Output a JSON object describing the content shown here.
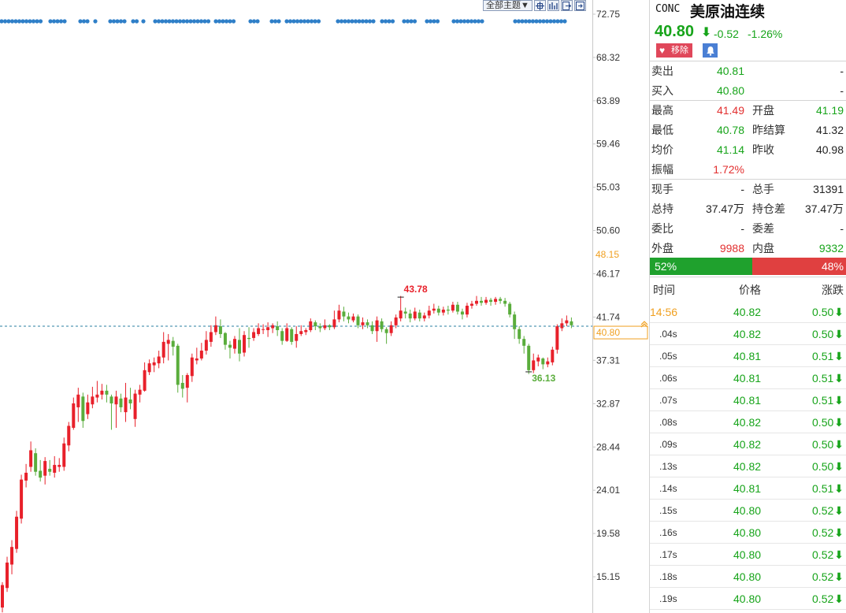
{
  "symbol": {
    "code": "CONC",
    "name": "美原油连续",
    "last": "40.80",
    "arrow": "⬇",
    "change": "-0.52",
    "change_pct": "-1.26%",
    "remove_label": "移除",
    "heart_icon": "♥",
    "colors": {
      "up": "#e23030",
      "down": "#17a41a",
      "accent": "#f0a020"
    }
  },
  "toolbar": {
    "theme_label": "全部主题▼",
    "icons": [
      "crosshair-icon",
      "bars-icon",
      "export-icon",
      "fullscreen-icon"
    ]
  },
  "quote_rows": [
    {
      "l1": "卖出",
      "v1": "40.81",
      "c1": "green",
      "l2": "",
      "v2": "-",
      "c2": "dark"
    },
    {
      "l1": "买入",
      "v1": "40.80",
      "c1": "green",
      "l2": "",
      "v2": "-",
      "c2": "dark"
    },
    {
      "l1": "最高",
      "v1": "41.49",
      "c1": "red",
      "l2": "开盘",
      "v2": "41.19",
      "c2": "green"
    },
    {
      "l1": "最低",
      "v1": "40.78",
      "c1": "green",
      "l2": "昨结算",
      "v2": "41.32",
      "c2": "dark"
    },
    {
      "l1": "均价",
      "v1": "41.14",
      "c1": "green",
      "l2": "昨收",
      "v2": "40.98",
      "c2": "dark"
    },
    {
      "l1": "振幅",
      "v1": "1.72%",
      "c1": "red",
      "l2": "",
      "v2": "",
      "c2": "dark"
    },
    {
      "l1": "现手",
      "v1": "-",
      "c1": "dark",
      "l2": "总手",
      "v2": "31391",
      "c2": "dark"
    },
    {
      "l1": "总持",
      "v1": "37.47万",
      "c1": "dark",
      "l2": "持仓差",
      "v2": "37.47万",
      "c2": "dark"
    },
    {
      "l1": "委比",
      "v1": "-",
      "c1": "dark",
      "l2": "委差",
      "v2": "-",
      "c2": "dark"
    },
    {
      "l1": "外盘",
      "v1": "9988",
      "c1": "red",
      "l2": "内盘",
      "v2": "9332",
      "c2": "green"
    }
  ],
  "ratio": {
    "buy_label": "52%",
    "sell_label": "48%",
    "buy_fraction": 0.52
  },
  "ticks_header": {
    "time": "时间",
    "price": "价格",
    "change": "涨跌"
  },
  "ticks": [
    {
      "time": "14:56",
      "price": "40.82",
      "change": "0.50"
    },
    {
      "time": ".04s",
      "price": "40.82",
      "change": "0.50"
    },
    {
      "time": ".05s",
      "price": "40.81",
      "change": "0.51"
    },
    {
      "time": ".06s",
      "price": "40.81",
      "change": "0.51"
    },
    {
      "time": ".07s",
      "price": "40.81",
      "change": "0.51"
    },
    {
      "time": ".08s",
      "price": "40.82",
      "change": "0.50"
    },
    {
      "time": ".09s",
      "price": "40.82",
      "change": "0.50"
    },
    {
      "time": ".13s",
      "price": "40.82",
      "change": "0.50"
    },
    {
      "time": ".14s",
      "price": "40.81",
      "change": "0.51"
    },
    {
      "time": ".15s",
      "price": "40.80",
      "change": "0.52"
    },
    {
      "time": ".16s",
      "price": "40.80",
      "change": "0.52"
    },
    {
      "time": ".17s",
      "price": "40.80",
      "change": "0.52"
    },
    {
      "time": ".18s",
      "price": "40.80",
      "change": "0.52"
    },
    {
      "time": ".19s",
      "price": "40.80",
      "change": "0.52"
    }
  ],
  "chart_data": {
    "type": "candlestick",
    "y_ticks": [
      72.75,
      68.32,
      63.89,
      59.46,
      55.03,
      50.6,
      46.17,
      41.74,
      37.31,
      32.87,
      28.44,
      24.01,
      19.58,
      15.15
    ],
    "ylim": [
      11.3,
      73.0
    ],
    "marker_label": "48.15",
    "current_label": "40.80",
    "current_value": 40.8,
    "high_annotation": {
      "label": "43.78",
      "value": 43.78
    },
    "low_annotation": {
      "label": "36.13",
      "value": 36.13
    },
    "colors": {
      "up": "#e8202a",
      "down": "#5aad3c",
      "dots": "#2f7fc8",
      "current_line": "#2a7fa0",
      "label_orange": "#f0a020"
    },
    "candles": [
      [
        12.0,
        14.3,
        11.5,
        14.6
      ],
      [
        14.0,
        16.6,
        13.6,
        17.2
      ],
      [
        16.4,
        18.2,
        15.4,
        18.9
      ],
      [
        18.0,
        21.3,
        17.6,
        21.9
      ],
      [
        21.1,
        25.1,
        20.6,
        25.6
      ],
      [
        25.0,
        25.8,
        24.3,
        26.7
      ],
      [
        26.4,
        28.1,
        25.9,
        29.0
      ],
      [
        27.8,
        25.9,
        25.5,
        28.3
      ],
      [
        26.0,
        25.3,
        24.9,
        27.1
      ],
      [
        25.5,
        27.0,
        24.6,
        27.4
      ],
      [
        26.2,
        25.9,
        25.5,
        27.1
      ],
      [
        25.8,
        26.6,
        25.3,
        27.5
      ],
      [
        26.4,
        26.6,
        25.9,
        27.3
      ],
      [
        26.4,
        28.8,
        26.0,
        29.4
      ],
      [
        28.6,
        30.6,
        28.0,
        31.0
      ],
      [
        30.4,
        32.9,
        30.2,
        33.5
      ],
      [
        32.5,
        33.8,
        31.0,
        34.5
      ],
      [
        33.6,
        31.1,
        30.4,
        34.0
      ],
      [
        31.8,
        33.0,
        31.3,
        33.8
      ],
      [
        32.8,
        33.6,
        32.4,
        34.6
      ],
      [
        33.5,
        33.8,
        33.0,
        35.2
      ],
      [
        33.8,
        34.2,
        33.3,
        34.9
      ],
      [
        34.2,
        33.8,
        33.0,
        34.8
      ],
      [
        33.6,
        32.9,
        30.2,
        33.8
      ],
      [
        32.8,
        33.6,
        30.4,
        34.2
      ],
      [
        33.4,
        32.5,
        32.0,
        33.9
      ],
      [
        32.0,
        33.5,
        31.0,
        35.0
      ],
      [
        33.3,
        32.9,
        32.3,
        34.5
      ],
      [
        31.3,
        33.9,
        30.5,
        34.3
      ],
      [
        33.8,
        34.3,
        33.0,
        34.8
      ],
      [
        34.2,
        36.3,
        34.1,
        37.1
      ],
      [
        36.1,
        37.0,
        35.8,
        37.4
      ],
      [
        36.8,
        37.1,
        36.1,
        37.6
      ],
      [
        37.0,
        37.7,
        36.5,
        38.3
      ],
      [
        37.6,
        39.2,
        37.0,
        40.2
      ],
      [
        39.0,
        39.4,
        37.3,
        40.0
      ],
      [
        39.3,
        38.7,
        37.8,
        39.7
      ],
      [
        38.8,
        34.8,
        34.0,
        39.0
      ],
      [
        35.0,
        34.4,
        33.5,
        35.8
      ],
      [
        34.5,
        35.8,
        33.0,
        36.0
      ],
      [
        35.7,
        37.6,
        35.1,
        38.0
      ],
      [
        37.3,
        37.5,
        36.9,
        38.6
      ],
      [
        37.5,
        38.3,
        37.3,
        39.1
      ],
      [
        38.3,
        39.4,
        37.9,
        40.3
      ],
      [
        39.2,
        40.2,
        38.7,
        40.9
      ],
      [
        40.2,
        40.9,
        39.9,
        41.8
      ],
      [
        40.8,
        40.0,
        39.6,
        41.5
      ],
      [
        40.1,
        38.9,
        38.4,
        40.2
      ],
      [
        38.9,
        38.6,
        37.5,
        39.3
      ],
      [
        38.5,
        39.5,
        38.0,
        39.8
      ],
      [
        39.4,
        38.0,
        37.2,
        40.6
      ],
      [
        38.1,
        39.9,
        37.7,
        40.3
      ],
      [
        39.6,
        39.5,
        38.6,
        40.7
      ],
      [
        39.6,
        40.2,
        39.3,
        40.6
      ],
      [
        40.0,
        40.6,
        39.8,
        41.1
      ],
      [
        40.5,
        40.5,
        40.0,
        41.0
      ],
      [
        40.4,
        40.7,
        39.7,
        41.2
      ],
      [
        40.6,
        40.9,
        40.1,
        41.1
      ],
      [
        40.8,
        40.4,
        39.8,
        41.3
      ],
      [
        40.3,
        39.3,
        38.9,
        40.6
      ],
      [
        39.3,
        40.6,
        39.2,
        41.1
      ],
      [
        40.5,
        39.2,
        38.9,
        40.7
      ],
      [
        39.3,
        40.0,
        38.6,
        40.8
      ],
      [
        40.0,
        40.3,
        39.8,
        40.9
      ],
      [
        40.2,
        40.4,
        39.9,
        40.6
      ],
      [
        40.4,
        41.3,
        40.2,
        41.6
      ],
      [
        41.2,
        40.8,
        40.4,
        41.4
      ],
      [
        40.8,
        40.6,
        40.2,
        41.1
      ],
      [
        40.6,
        40.9,
        40.4,
        41.5
      ],
      [
        40.9,
        40.7,
        40.4,
        41.0
      ],
      [
        40.7,
        41.5,
        40.5,
        42.4
      ],
      [
        41.5,
        42.4,
        41.2,
        43.0
      ],
      [
        42.3,
        41.8,
        41.3,
        42.8
      ],
      [
        41.8,
        41.5,
        41.1,
        42.2
      ],
      [
        41.4,
        41.8,
        41.2,
        42.1
      ],
      [
        41.8,
        40.9,
        40.6,
        42.0
      ],
      [
        40.9,
        41.2,
        40.5,
        41.7
      ],
      [
        41.2,
        40.9,
        40.6,
        41.5
      ],
      [
        40.9,
        40.3,
        40.0,
        41.3
      ],
      [
        40.3,
        41.4,
        39.2,
        41.8
      ],
      [
        41.3,
        40.5,
        40.2,
        41.6
      ],
      [
        40.5,
        40.1,
        39.0,
        40.7
      ],
      [
        40.1,
        40.9,
        39.8,
        41.3
      ],
      [
        40.9,
        41.7,
        40.6,
        42.0
      ],
      [
        41.6,
        42.4,
        41.3,
        43.9
      ],
      [
        42.3,
        42.1,
        41.6,
        42.7
      ],
      [
        42.1,
        41.6,
        41.2,
        42.5
      ],
      [
        41.6,
        42.3,
        41.4,
        42.7
      ],
      [
        42.2,
        41.6,
        41.3,
        42.5
      ],
      [
        41.6,
        41.9,
        41.3,
        42.2
      ],
      [
        41.9,
        42.4,
        41.6,
        42.9
      ],
      [
        42.4,
        42.6,
        42.1,
        43.1
      ],
      [
        42.6,
        42.2,
        41.9,
        42.9
      ],
      [
        42.2,
        42.5,
        41.9,
        42.8
      ],
      [
        42.5,
        42.4,
        42.0,
        42.9
      ],
      [
        42.4,
        43.0,
        42.2,
        43.3
      ],
      [
        43.0,
        42.3,
        42.0,
        43.3
      ],
      [
        42.3,
        42.0,
        41.5,
        42.6
      ],
      [
        42.0,
        42.9,
        41.7,
        43.2
      ],
      [
        42.9,
        43.1,
        42.6,
        43.4
      ],
      [
        43.1,
        43.4,
        42.9,
        43.9
      ],
      [
        43.4,
        43.2,
        42.9,
        43.8
      ],
      [
        43.2,
        43.5,
        43.0,
        43.8
      ],
      [
        43.5,
        43.3,
        42.9,
        43.7
      ],
      [
        43.3,
        43.6,
        43.0,
        43.8
      ],
      [
        43.6,
        43.4,
        43.1,
        43.8
      ],
      [
        43.4,
        43.1,
        42.8,
        43.7
      ],
      [
        43.1,
        42.0,
        41.7,
        43.3
      ],
      [
        42.0,
        40.5,
        39.5,
        42.3
      ],
      [
        40.5,
        39.5,
        39.0,
        40.8
      ],
      [
        39.5,
        38.8,
        38.0,
        39.8
      ],
      [
        38.8,
        36.3,
        35.9,
        39.0
      ],
      [
        36.3,
        37.3,
        36.0,
        38.0
      ],
      [
        37.2,
        37.6,
        36.7,
        37.9
      ],
      [
        37.5,
        36.9,
        36.4,
        37.6
      ],
      [
        36.9,
        37.2,
        36.6,
        37.6
      ],
      [
        37.1,
        38.4,
        36.8,
        38.7
      ],
      [
        38.4,
        40.8,
        38.0,
        41.0
      ],
      [
        40.6,
        41.1,
        40.3,
        41.6
      ],
      [
        41.1,
        41.4,
        40.8,
        41.9
      ],
      [
        41.3,
        40.9,
        40.6,
        41.7
      ]
    ]
  }
}
